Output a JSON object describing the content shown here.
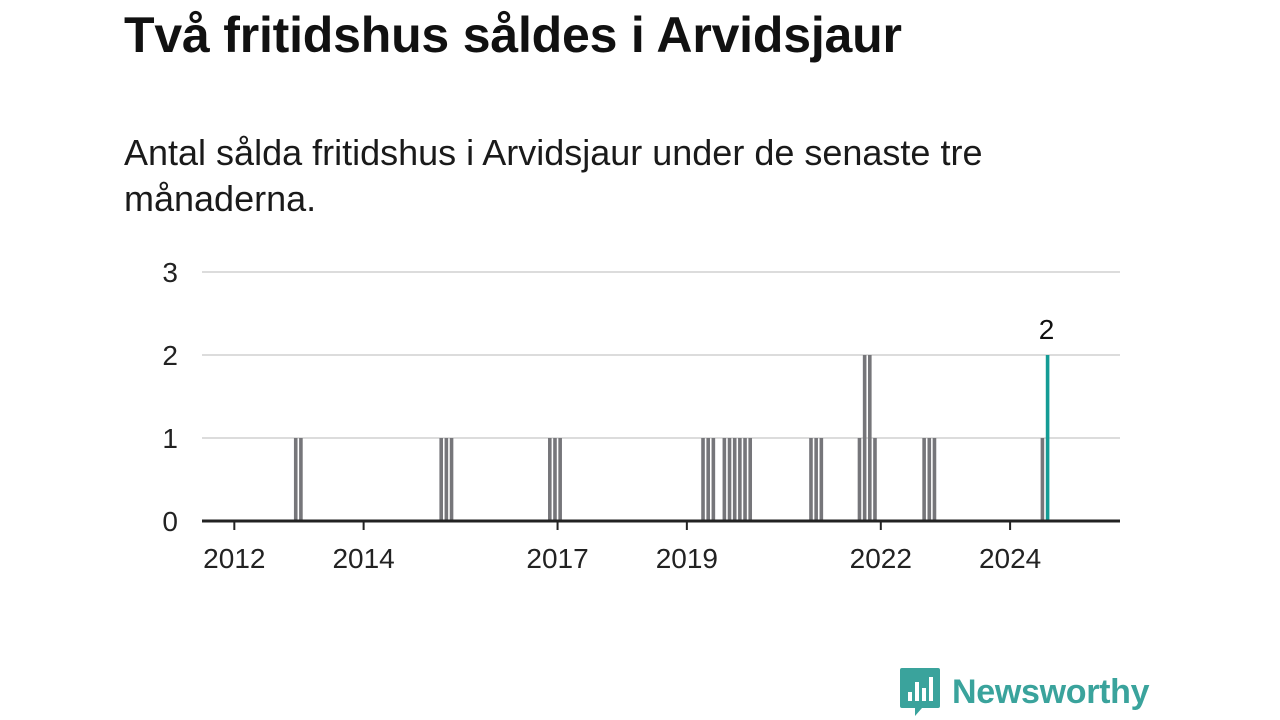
{
  "header": {
    "title": "Två fritidshus såldes i Arvidsjaur",
    "subtitle": "Antal sålda fritidshus i Arvidsjaur under de senaste tre månaderna."
  },
  "chart_data": {
    "type": "bar",
    "title": "Två fritidshus såldes i Arvidsjaur",
    "subtitle": "Antal sålda fritidshus i Arvidsjaur under de senaste tre månaderna.",
    "xlabel": "",
    "ylabel": "",
    "ylim": [
      0,
      3
    ],
    "yticks": [
      0,
      1,
      2,
      3
    ],
    "xlim": [
      2011.5,
      2025.7
    ],
    "xticks": [
      {
        "value": 2012,
        "label": "2012"
      },
      {
        "value": 2014,
        "label": "2014"
      },
      {
        "value": 2017,
        "label": "2017"
      },
      {
        "value": 2019,
        "label": "2019"
      },
      {
        "value": 2022,
        "label": "2022"
      },
      {
        "value": 2024,
        "label": "2024"
      }
    ],
    "grid": true,
    "colors": {
      "bar": "#76767a",
      "highlight": "#149c95",
      "grid": "#dcdcdc",
      "axis": "#222222"
    },
    "points": [
      {
        "x": 2012.95,
        "y": 1
      },
      {
        "x": 2013.03,
        "y": 1
      },
      {
        "x": 2015.2,
        "y": 1
      },
      {
        "x": 2015.28,
        "y": 1
      },
      {
        "x": 2015.36,
        "y": 1
      },
      {
        "x": 2016.88,
        "y": 1
      },
      {
        "x": 2016.96,
        "y": 1
      },
      {
        "x": 2017.04,
        "y": 1
      },
      {
        "x": 2019.25,
        "y": 1
      },
      {
        "x": 2019.33,
        "y": 1
      },
      {
        "x": 2019.41,
        "y": 1
      },
      {
        "x": 2019.58,
        "y": 1
      },
      {
        "x": 2019.66,
        "y": 1
      },
      {
        "x": 2019.74,
        "y": 1
      },
      {
        "x": 2019.82,
        "y": 1
      },
      {
        "x": 2019.9,
        "y": 1
      },
      {
        "x": 2019.98,
        "y": 1
      },
      {
        "x": 2020.92,
        "y": 1
      },
      {
        "x": 2021.0,
        "y": 1
      },
      {
        "x": 2021.08,
        "y": 1
      },
      {
        "x": 2021.67,
        "y": 1
      },
      {
        "x": 2021.75,
        "y": 2
      },
      {
        "x": 2021.83,
        "y": 2
      },
      {
        "x": 2021.91,
        "y": 1
      },
      {
        "x": 2022.67,
        "y": 1
      },
      {
        "x": 2022.75,
        "y": 1
      },
      {
        "x": 2022.83,
        "y": 1
      },
      {
        "x": 2024.5,
        "y": 1
      },
      {
        "x": 2024.58,
        "y": 2,
        "highlight": true,
        "label": "2"
      }
    ]
  },
  "brand": {
    "name": "Newsworthy",
    "icon": "newsworthy-logo-icon",
    "color": "#3aa39c"
  }
}
